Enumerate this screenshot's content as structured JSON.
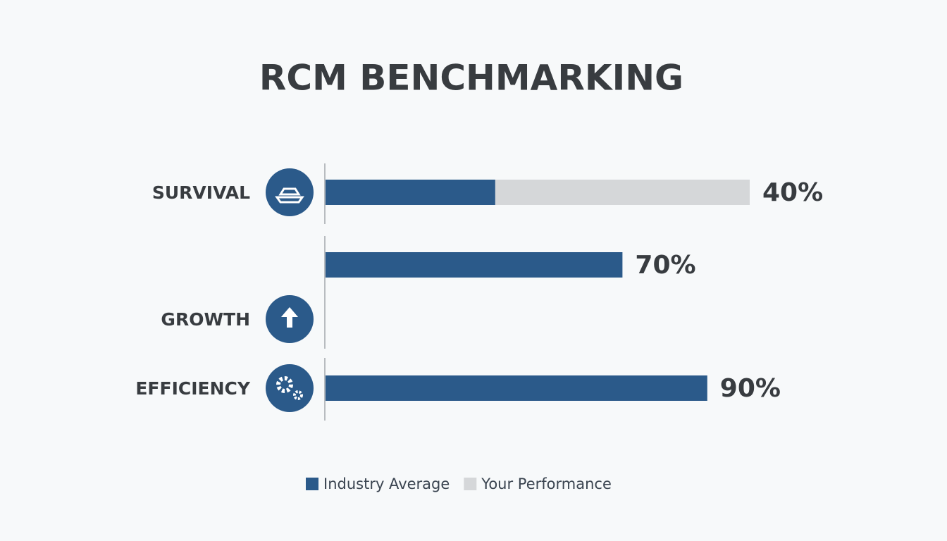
{
  "chart_data": {
    "type": "bar",
    "orientation": "horizontal",
    "title": "RCM BENCHMARKING",
    "categories": [
      "SURVIVAL",
      null,
      "GROWTH",
      "EFFICIENCY"
    ],
    "series": [
      {
        "name": "Industry Average",
        "color": "#2b5a8a",
        "values": [
          40,
          70,
          null,
          90
        ],
        "value_labels": [
          "40%",
          "70%",
          null,
          "90%"
        ]
      },
      {
        "name": "Your Performance",
        "color": "#d5d7d9",
        "values": [
          100,
          null,
          null,
          null
        ]
      }
    ],
    "xlim": [
      0,
      100
    ]
  }
}
